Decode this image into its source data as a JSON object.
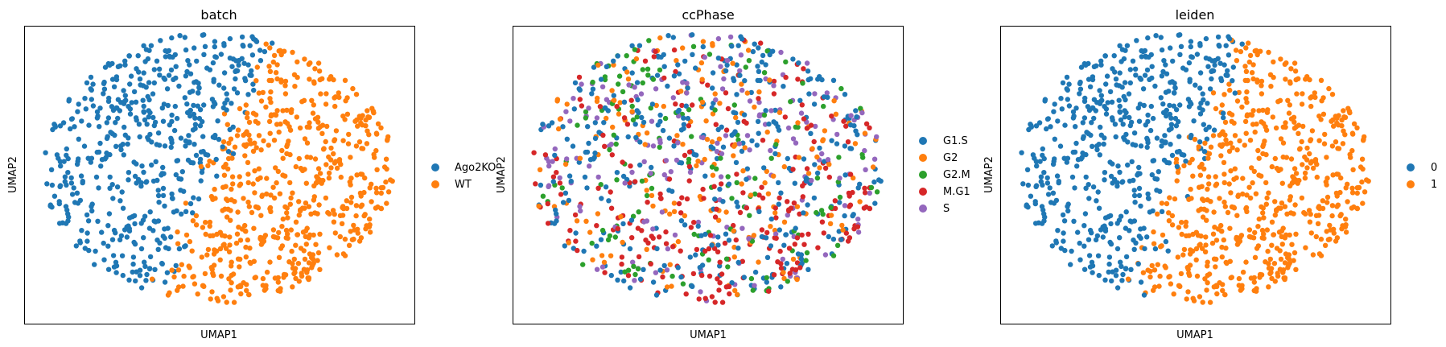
{
  "chart_data": [
    {
      "type": "scatter",
      "title": "batch",
      "xlabel": "UMAP1",
      "ylabel": "UMAP2",
      "grid": false,
      "ticks": false,
      "legend_placement": "right",
      "legend": [
        {
          "label": "Ago2KO",
          "color": "#1f77b4"
        },
        {
          "label": "WT",
          "color": "#ff7f0e"
        }
      ],
      "pattern": "split"
    },
    {
      "type": "scatter",
      "title": "ccPhase",
      "xlabel": "UMAP1",
      "ylabel": "UMAP2",
      "grid": false,
      "ticks": false,
      "legend_placement": "right",
      "legend": [
        {
          "label": "G1.S",
          "color": "#1f77b4"
        },
        {
          "label": "G2",
          "color": "#ff7f0e"
        },
        {
          "label": "G2.M",
          "color": "#2ca02c"
        },
        {
          "label": "M.G1",
          "color": "#d62728"
        },
        {
          "label": "S",
          "color": "#9467bd"
        }
      ],
      "pattern": "mixed"
    },
    {
      "type": "scatter",
      "title": "leiden",
      "xlabel": "UMAP1",
      "ylabel": "UMAP2",
      "grid": false,
      "ticks": false,
      "legend_placement": "right",
      "legend": [
        {
          "label": "0",
          "color": "#1f77b4"
        },
        {
          "label": "1",
          "color": "#ff7f0e"
        }
      ],
      "pattern": "split"
    }
  ]
}
